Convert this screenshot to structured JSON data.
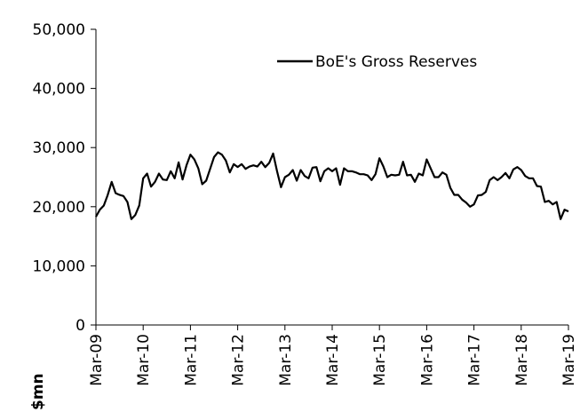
{
  "chart_data": {
    "type": "line",
    "y_label": "$mn",
    "categories": [
      "Mar-09",
      null,
      null,
      null,
      null,
      null,
      null,
      null,
      null,
      null,
      null,
      null,
      "Mar-10",
      null,
      null,
      null,
      null,
      null,
      null,
      null,
      null,
      null,
      null,
      null,
      "Mar-11",
      null,
      null,
      null,
      null,
      null,
      null,
      null,
      null,
      null,
      null,
      null,
      "Mar-12",
      null,
      null,
      null,
      null,
      null,
      null,
      null,
      null,
      null,
      null,
      null,
      "Mar-13",
      null,
      null,
      null,
      null,
      null,
      null,
      null,
      null,
      null,
      null,
      null,
      "Mar-14",
      null,
      null,
      null,
      null,
      null,
      null,
      null,
      null,
      null,
      null,
      null,
      "Mar-15",
      null,
      null,
      null,
      null,
      null,
      null,
      null,
      null,
      null,
      null,
      null,
      "Mar-16",
      null,
      null,
      null,
      null,
      null,
      null,
      null,
      null,
      null,
      null,
      null,
      "Mar-17",
      null,
      null,
      null,
      null,
      null,
      null,
      null,
      null,
      null,
      null,
      null,
      "Mar-18",
      null,
      null,
      null,
      null,
      null,
      null,
      null,
      null,
      null,
      null,
      null,
      "Mar-19"
    ],
    "series": [
      {
        "name": "BoE's Gross Reserves",
        "color": "#000000",
        "values": [
          18300,
          19500,
          20200,
          22000,
          24200,
          22300,
          22000,
          21800,
          20800,
          17900,
          18600,
          20200,
          24800,
          25600,
          23400,
          24200,
          25600,
          24600,
          24500,
          26000,
          24800,
          27500,
          24600,
          27000,
          28800,
          28000,
          26500,
          23800,
          24400,
          26400,
          28400,
          29200,
          28800,
          27800,
          25800,
          27200,
          26700,
          27200,
          26400,
          26800,
          27000,
          26800,
          27600,
          26700,
          27400,
          29000,
          26000,
          23300,
          25000,
          25400,
          26200,
          24400,
          26200,
          25200,
          24800,
          26600,
          26700,
          24300,
          26000,
          26500,
          26000,
          26500,
          23700,
          26500,
          26000,
          26000,
          25800,
          25500,
          25500,
          25300,
          24500,
          25500,
          28200,
          26800,
          25000,
          25400,
          25300,
          25400,
          27600,
          25300,
          25400,
          24200,
          25600,
          25300,
          28000,
          26500,
          25000,
          25000,
          25800,
          25400,
          23200,
          22000,
          22000,
          21200,
          20700,
          20000,
          20400,
          21900,
          22000,
          22500,
          24500,
          25000,
          24500,
          25000,
          25700,
          24800,
          26300,
          26700,
          26200,
          25200,
          24800,
          24800,
          23500,
          23400,
          20800,
          21000,
          20400,
          20800,
          17900,
          19500,
          19200
        ]
      }
    ],
    "ylim": [
      0,
      50000
    ],
    "yticks": [
      0,
      {
        "value": 10000,
        "label": "10,000"
      },
      {
        "value": 20000,
        "label": "20,000"
      },
      {
        "value": 30000,
        "label": "30,000"
      },
      {
        "value": 40000,
        "label": "40,000"
      },
      {
        "value": 50000,
        "label": "50,000"
      }
    ]
  }
}
